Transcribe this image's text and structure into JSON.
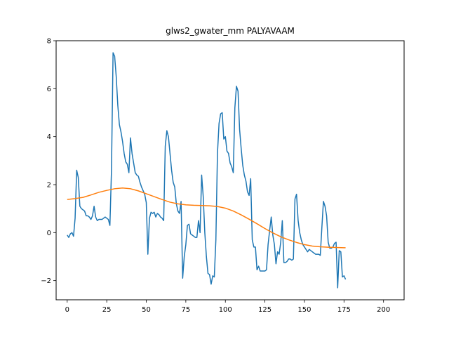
{
  "chart_data": {
    "type": "line",
    "title": "glws2_gwater_mm PALYAVAAM",
    "xlabel": "",
    "ylabel": "",
    "xlim": [
      -7,
      213
    ],
    "ylim": [
      -2.8,
      8
    ],
    "xticks": [
      0,
      25,
      50,
      75,
      100,
      125,
      150,
      175,
      200
    ],
    "yticks": [
      -2,
      0,
      2,
      4,
      6,
      8
    ],
    "grid": false,
    "legend": "none",
    "series": [
      {
        "color": "#1f77b4",
        "points": [
          [
            0,
            -0.1
          ],
          [
            1,
            -0.2
          ],
          [
            2,
            -0.05
          ],
          [
            3,
            0.0
          ],
          [
            4,
            -0.15
          ],
          [
            5,
            0.6
          ],
          [
            6,
            2.6
          ],
          [
            7,
            2.3
          ],
          [
            8,
            1.1
          ],
          [
            9,
            1.0
          ],
          [
            10,
            0.95
          ],
          [
            11,
            0.9
          ],
          [
            12,
            0.7
          ],
          [
            13,
            0.7
          ],
          [
            14,
            0.65
          ],
          [
            15,
            0.55
          ],
          [
            16,
            0.7
          ],
          [
            17,
            1.1
          ],
          [
            18,
            0.65
          ],
          [
            19,
            0.5
          ],
          [
            20,
            0.55
          ],
          [
            21,
            0.55
          ],
          [
            22,
            0.55
          ],
          [
            23,
            0.6
          ],
          [
            24,
            0.65
          ],
          [
            25,
            0.6
          ],
          [
            26,
            0.55
          ],
          [
            27,
            0.3
          ],
          [
            28,
            2.6
          ],
          [
            29,
            7.5
          ],
          [
            30,
            7.35
          ],
          [
            31,
            6.5
          ],
          [
            32,
            5.3
          ],
          [
            33,
            4.5
          ],
          [
            34,
            4.2
          ],
          [
            35,
            3.8
          ],
          [
            36,
            3.3
          ],
          [
            37,
            2.95
          ],
          [
            38,
            2.85
          ],
          [
            39,
            2.5
          ],
          [
            40,
            3.95
          ],
          [
            41,
            3.3
          ],
          [
            42,
            2.9
          ],
          [
            43,
            2.5
          ],
          [
            44,
            2.4
          ],
          [
            45,
            2.35
          ],
          [
            46,
            2.1
          ],
          [
            47,
            1.9
          ],
          [
            48,
            1.75
          ],
          [
            49,
            1.6
          ],
          [
            50,
            1.25
          ],
          [
            51,
            -0.9
          ],
          [
            52,
            0.6
          ],
          [
            53,
            0.85
          ],
          [
            54,
            0.8
          ],
          [
            55,
            0.85
          ],
          [
            56,
            0.65
          ],
          [
            57,
            0.8
          ],
          [
            58,
            0.75
          ],
          [
            59,
            0.65
          ],
          [
            60,
            0.6
          ],
          [
            61,
            0.5
          ],
          [
            62,
            3.6
          ],
          [
            63,
            4.25
          ],
          [
            64,
            4.0
          ],
          [
            65,
            3.3
          ],
          [
            66,
            2.6
          ],
          [
            67,
            2.1
          ],
          [
            68,
            1.9
          ],
          [
            69,
            1.2
          ],
          [
            70,
            0.9
          ],
          [
            71,
            0.8
          ],
          [
            72,
            1.3
          ],
          [
            73,
            -1.9
          ],
          [
            74,
            -1.0
          ],
          [
            75,
            -0.5
          ],
          [
            76,
            0.3
          ],
          [
            77,
            0.35
          ],
          [
            78,
            -0.05
          ],
          [
            79,
            -0.1
          ],
          [
            80,
            -0.15
          ],
          [
            81,
            -0.2
          ],
          [
            82,
            -0.2
          ],
          [
            83,
            0.5
          ],
          [
            84,
            0.0
          ],
          [
            85,
            2.4
          ],
          [
            86,
            1.5
          ],
          [
            87,
            0.0
          ],
          [
            88,
            -1.0
          ],
          [
            89,
            -1.7
          ],
          [
            90,
            -1.75
          ],
          [
            91,
            -2.15
          ],
          [
            92,
            -1.8
          ],
          [
            93,
            -1.85
          ],
          [
            94,
            -0.3
          ],
          [
            95,
            3.3
          ],
          [
            96,
            4.55
          ],
          [
            97,
            4.95
          ],
          [
            98,
            5.0
          ],
          [
            99,
            3.9
          ],
          [
            100,
            4.0
          ],
          [
            101,
            3.4
          ],
          [
            102,
            3.3
          ],
          [
            103,
            2.9
          ],
          [
            104,
            2.75
          ],
          [
            105,
            2.5
          ],
          [
            106,
            5.2
          ],
          [
            107,
            6.1
          ],
          [
            108,
            5.9
          ],
          [
            109,
            4.3
          ],
          [
            110,
            3.5
          ],
          [
            111,
            2.8
          ],
          [
            112,
            2.4
          ],
          [
            113,
            2.15
          ],
          [
            114,
            1.7
          ],
          [
            115,
            1.55
          ],
          [
            116,
            2.25
          ],
          [
            117,
            -0.3
          ],
          [
            118,
            -0.6
          ],
          [
            119,
            -0.6
          ],
          [
            120,
            -1.55
          ],
          [
            121,
            -1.4
          ],
          [
            122,
            -1.6
          ],
          [
            123,
            -1.6
          ],
          [
            124,
            -1.6
          ],
          [
            125,
            -1.6
          ],
          [
            126,
            -1.55
          ],
          [
            127,
            -0.5
          ],
          [
            128,
            0.1
          ],
          [
            129,
            0.65
          ],
          [
            130,
            -0.1
          ],
          [
            131,
            -0.5
          ],
          [
            132,
            -1.3
          ],
          [
            133,
            -0.8
          ],
          [
            134,
            -0.9
          ],
          [
            135,
            -0.4
          ],
          [
            136,
            0.5
          ],
          [
            137,
            -1.25
          ],
          [
            138,
            -1.25
          ],
          [
            139,
            -1.2
          ],
          [
            140,
            -1.1
          ],
          [
            141,
            -1.1
          ],
          [
            142,
            -1.15
          ],
          [
            143,
            -1.1
          ],
          [
            144,
            1.4
          ],
          [
            145,
            1.6
          ],
          [
            146,
            0.5
          ],
          [
            147,
            0.0
          ],
          [
            148,
            -0.3
          ],
          [
            149,
            -0.5
          ],
          [
            150,
            -0.6
          ],
          [
            151,
            -0.7
          ],
          [
            152,
            -0.8
          ],
          [
            153,
            -0.7
          ],
          [
            154,
            -0.75
          ],
          [
            155,
            -0.8
          ],
          [
            156,
            -0.85
          ],
          [
            157,
            -0.9
          ],
          [
            158,
            -0.9
          ],
          [
            159,
            -0.9
          ],
          [
            160,
            -0.95
          ],
          [
            161,
            0.2
          ],
          [
            162,
            1.3
          ],
          [
            163,
            1.1
          ],
          [
            164,
            0.7
          ],
          [
            165,
            -0.4
          ],
          [
            166,
            -0.65
          ],
          [
            167,
            -0.65
          ],
          [
            168,
            -0.6
          ],
          [
            169,
            -0.45
          ],
          [
            170,
            -0.4
          ],
          [
            171,
            -2.3
          ],
          [
            172,
            -0.75
          ],
          [
            173,
            -0.8
          ],
          [
            174,
            -1.85
          ],
          [
            175,
            -1.8
          ],
          [
            176,
            -1.95
          ]
        ]
      },
      {
        "color": "#ff7f0e",
        "points": [
          [
            0,
            1.38
          ],
          [
            5,
            1.42
          ],
          [
            10,
            1.47
          ],
          [
            15,
            1.57
          ],
          [
            20,
            1.68
          ],
          [
            25,
            1.76
          ],
          [
            30,
            1.83
          ],
          [
            35,
            1.86
          ],
          [
            40,
            1.83
          ],
          [
            45,
            1.74
          ],
          [
            50,
            1.62
          ],
          [
            55,
            1.5
          ],
          [
            60,
            1.38
          ],
          [
            65,
            1.27
          ],
          [
            70,
            1.2
          ],
          [
            75,
            1.16
          ],
          [
            80,
            1.14
          ],
          [
            85,
            1.13
          ],
          [
            90,
            1.12
          ],
          [
            95,
            1.09
          ],
          [
            100,
            1.02
          ],
          [
            105,
            0.9
          ],
          [
            110,
            0.74
          ],
          [
            115,
            0.56
          ],
          [
            120,
            0.37
          ],
          [
            125,
            0.17
          ],
          [
            130,
            -0.01
          ],
          [
            135,
            -0.17
          ],
          [
            140,
            -0.3
          ],
          [
            145,
            -0.41
          ],
          [
            150,
            -0.5
          ],
          [
            155,
            -0.56
          ],
          [
            160,
            -0.59
          ],
          [
            165,
            -0.61
          ],
          [
            170,
            -0.62
          ],
          [
            175,
            -0.63
          ],
          [
            176,
            -0.63
          ]
        ]
      }
    ]
  }
}
